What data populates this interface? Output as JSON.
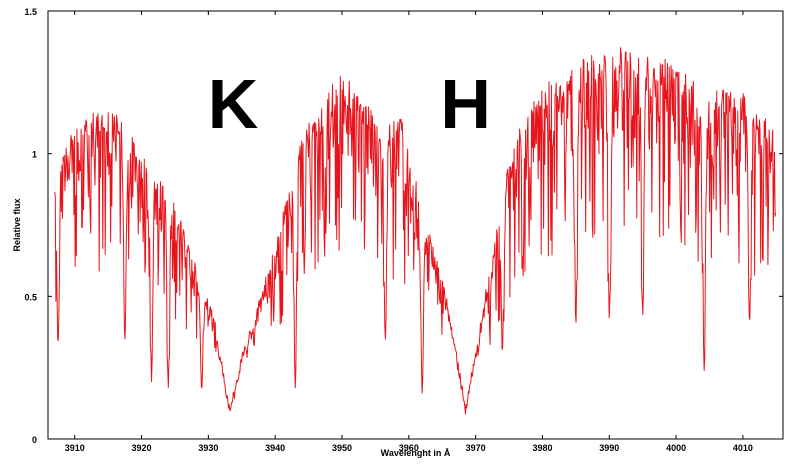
{
  "chart_data": {
    "type": "line",
    "title": "",
    "xlabel": "Wavelenght in Å",
    "ylabel": "Relative flux",
    "xlim": [
      3906,
      4016
    ],
    "ylim": [
      0,
      1.5
    ],
    "xticks": [
      3910,
      3920,
      3930,
      3940,
      3950,
      3960,
      3970,
      3980,
      3990,
      4000,
      4010
    ],
    "yticks": [
      0,
      0.5,
      1,
      1.5
    ],
    "ytick_labels": [
      "0",
      "0.5",
      "1",
      "1.5"
    ],
    "grid": false,
    "line_color": "#e8141c",
    "annotations": [
      {
        "text": "K",
        "x": 3933.7,
        "y": 1.09
      },
      {
        "text": "H",
        "x": 3968.5,
        "y": 1.09
      }
    ],
    "envelope": {
      "x": [
        3907,
        3910,
        3913,
        3916,
        3919,
        3922,
        3925,
        3928,
        3931,
        3933.2,
        3935,
        3938,
        3941,
        3944,
        3947,
        3950,
        3953,
        3956,
        3959,
        3962,
        3965,
        3968.5,
        3971,
        3974,
        3977,
        3980,
        3983,
        3986,
        3989,
        3992,
        3995,
        3998,
        4001,
        4004,
        4007,
        4010,
        4013,
        4015
      ],
      "y": [
        0.95,
        1.13,
        1.15,
        1.18,
        1.05,
        0.95,
        0.85,
        0.63,
        0.42,
        0.11,
        0.3,
        0.52,
        0.8,
        1.07,
        1.2,
        1.3,
        1.22,
        1.1,
        1.15,
        0.8,
        0.6,
        0.12,
        0.45,
        0.88,
        1.15,
        1.25,
        1.3,
        1.35,
        1.37,
        1.38,
        1.36,
        1.34,
        1.33,
        1.2,
        1.25,
        1.22,
        1.15,
        1.08
      ]
    },
    "deep_lines": [
      {
        "x": 3907.5,
        "y": 0.33
      },
      {
        "x": 3917.5,
        "y": 0.34
      },
      {
        "x": 3921.5,
        "y": 0.2
      },
      {
        "x": 3924.0,
        "y": 0.18
      },
      {
        "x": 3929.0,
        "y": 0.17
      },
      {
        "x": 3943.0,
        "y": 0.18
      },
      {
        "x": 3956.5,
        "y": 0.35
      },
      {
        "x": 3962.0,
        "y": 0.16
      },
      {
        "x": 3974.0,
        "y": 0.3
      },
      {
        "x": 3985.0,
        "y": 0.4
      },
      {
        "x": 3990.0,
        "y": 0.42
      },
      {
        "x": 3995.0,
        "y": 0.43
      },
      {
        "x": 4004.2,
        "y": 0.24
      },
      {
        "x": 4011.0,
        "y": 0.4
      }
    ]
  }
}
